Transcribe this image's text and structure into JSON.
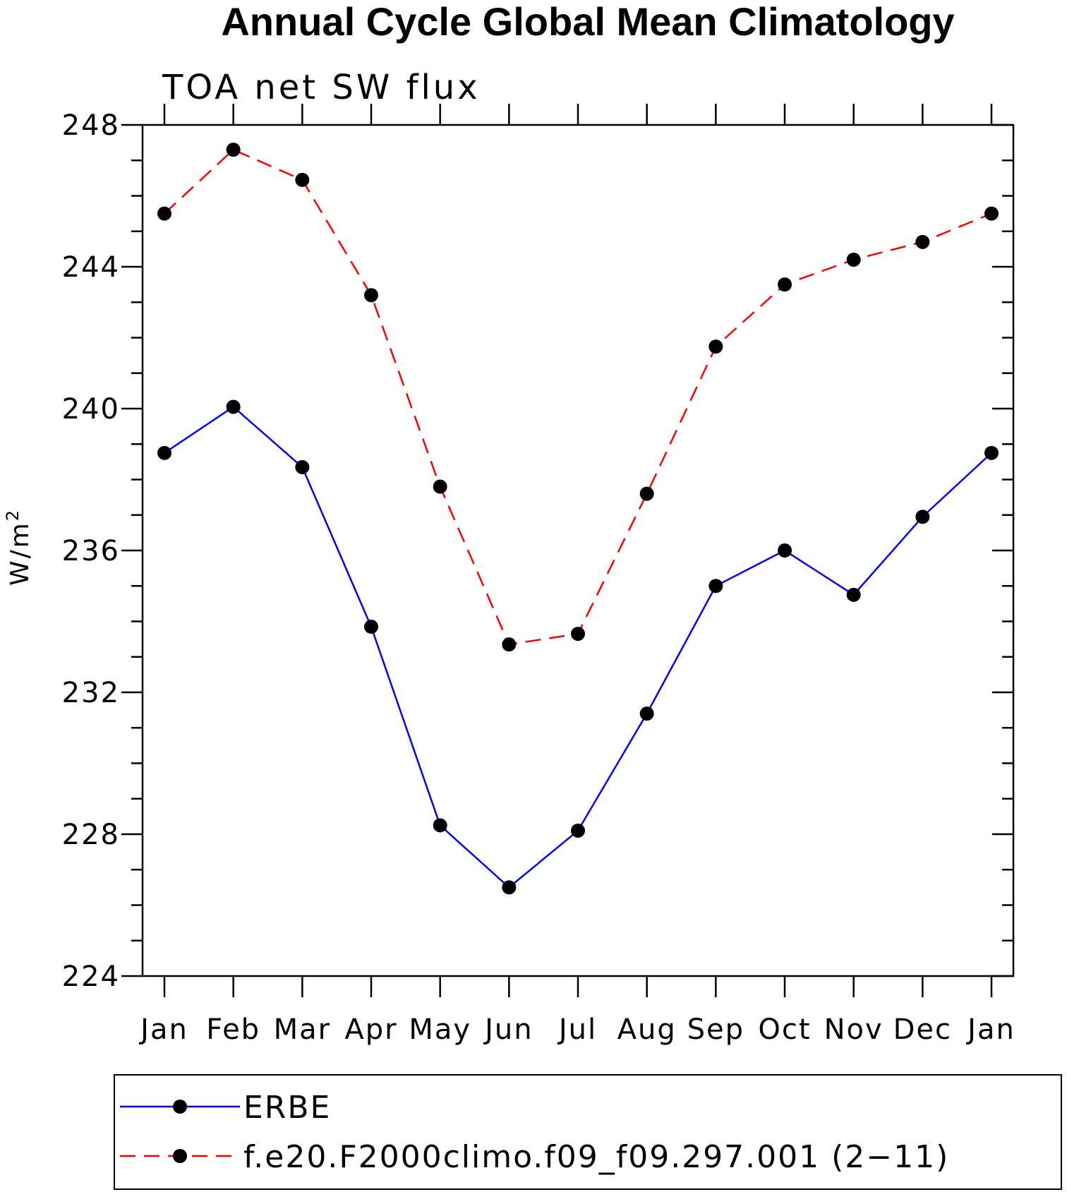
{
  "chart_data": {
    "type": "line",
    "title": "Annual Cycle Global Mean Climatology",
    "subtitle": "TOA net SW flux",
    "ylabel": "W/m",
    "ylabel_superscript": "2",
    "xlabel": "",
    "categories": [
      "Jan",
      "Feb",
      "Mar",
      "Apr",
      "May",
      "Jun",
      "Jul",
      "Aug",
      "Sep",
      "Oct",
      "Nov",
      "Dec",
      "Jan"
    ],
    "ylim": [
      224,
      248
    ],
    "yticks": [
      224,
      228,
      232,
      236,
      240,
      244,
      248
    ],
    "yminor_step": 1,
    "grid": false,
    "legend_position": "bottom",
    "series": [
      {
        "name": "ERBE",
        "color": "#0000ff",
        "style": "solid",
        "values": [
          238.75,
          240.05,
          238.35,
          233.85,
          228.25,
          226.5,
          228.1,
          231.4,
          235.0,
          236.0,
          234.75,
          236.95,
          238.75
        ]
      },
      {
        "name": "f.e20.F2000climo.f09_f09.297.001 (2−11)",
        "color": "#ff0000",
        "style": "dashed",
        "values": [
          245.5,
          247.3,
          246.45,
          243.2,
          237.8,
          233.35,
          233.65,
          237.6,
          241.75,
          243.5,
          244.2,
          244.7,
          245.5
        ]
      }
    ]
  }
}
